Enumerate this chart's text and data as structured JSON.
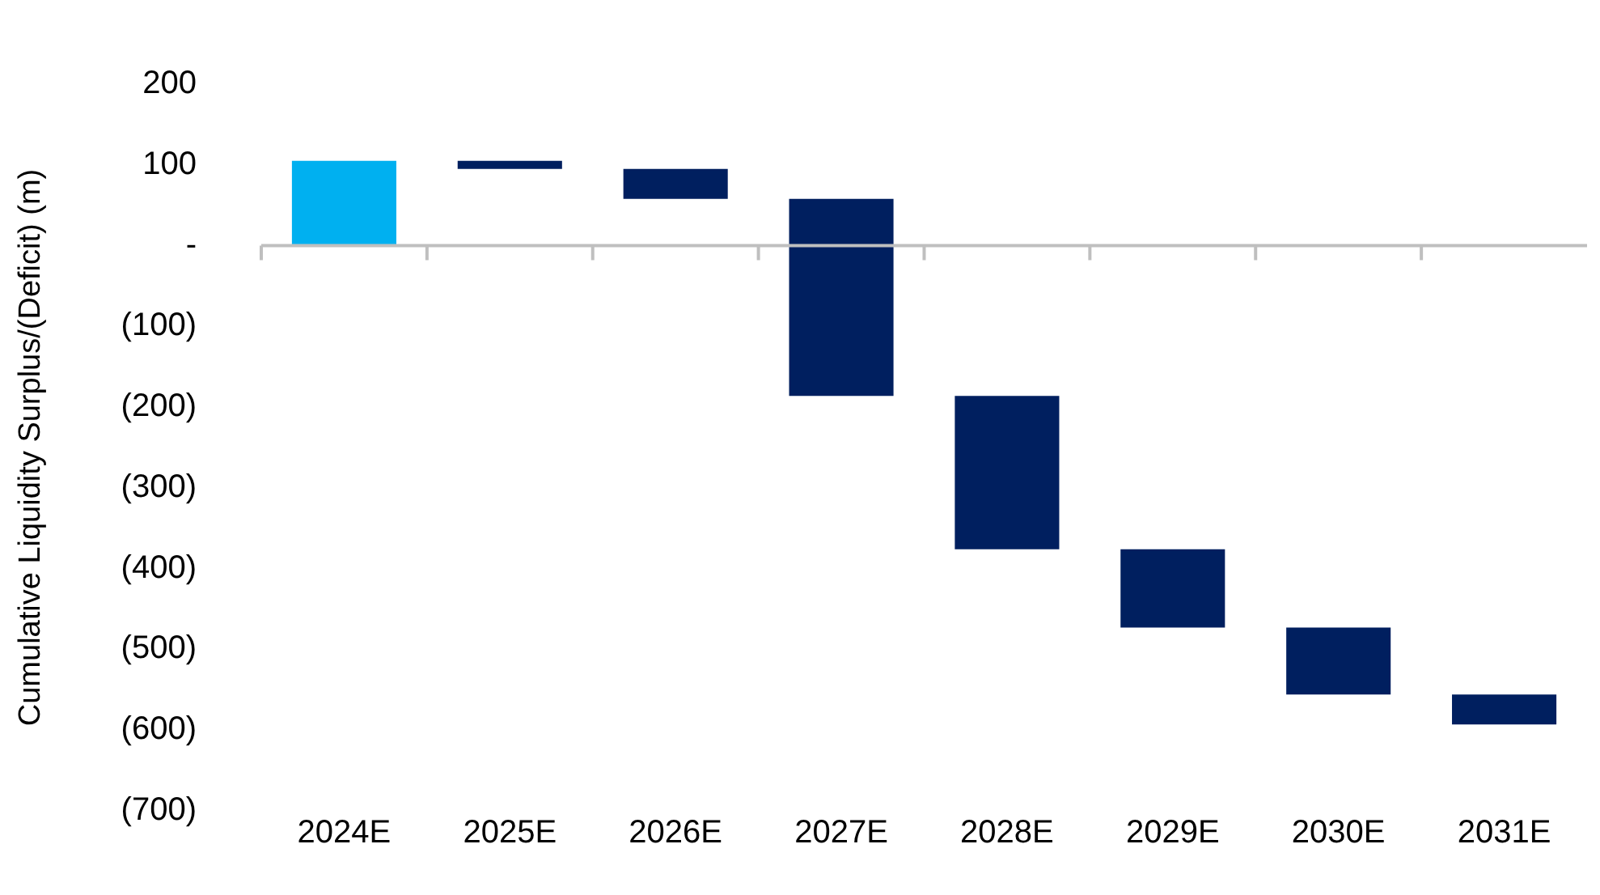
{
  "chart_data": {
    "type": "bar",
    "ylabel": "Cumulative Liquidity Surplus/(Deficit) (m)",
    "categories": [
      "2024E",
      "2025E",
      "2026E",
      "2027E",
      "2028E",
      "2029E",
      "2030E",
      "2031E"
    ],
    "values": [
      105,
      -10,
      -37,
      -244,
      -190,
      -97,
      -83,
      -37
    ],
    "base": [
      0,
      105,
      95,
      58,
      -186,
      -376,
      -473,
      -556
    ],
    "colors": [
      "#00b0f0",
      "#001f5f",
      "#001f5f",
      "#001f5f",
      "#001f5f",
      "#001f5f",
      "#001f5f",
      "#001f5f"
    ],
    "ylim": [
      -700,
      200
    ],
    "yticks": [
      200,
      100,
      {
        "value": 0,
        "label": "-"
      },
      {
        "value": -100,
        "label": "(100)"
      },
      {
        "value": -200,
        "label": "(200)"
      },
      {
        "value": -300,
        "label": "(300)"
      },
      {
        "value": -400,
        "label": "(400)"
      },
      {
        "value": -500,
        "label": "(500)"
      },
      {
        "value": -600,
        "label": "(600)"
      },
      {
        "value": -700,
        "label": "(700)"
      }
    ],
    "ref_lines": [
      {
        "axis": "y",
        "value": 0,
        "color": "#bfbfbf"
      }
    ],
    "grid": false,
    "legend": false
  }
}
